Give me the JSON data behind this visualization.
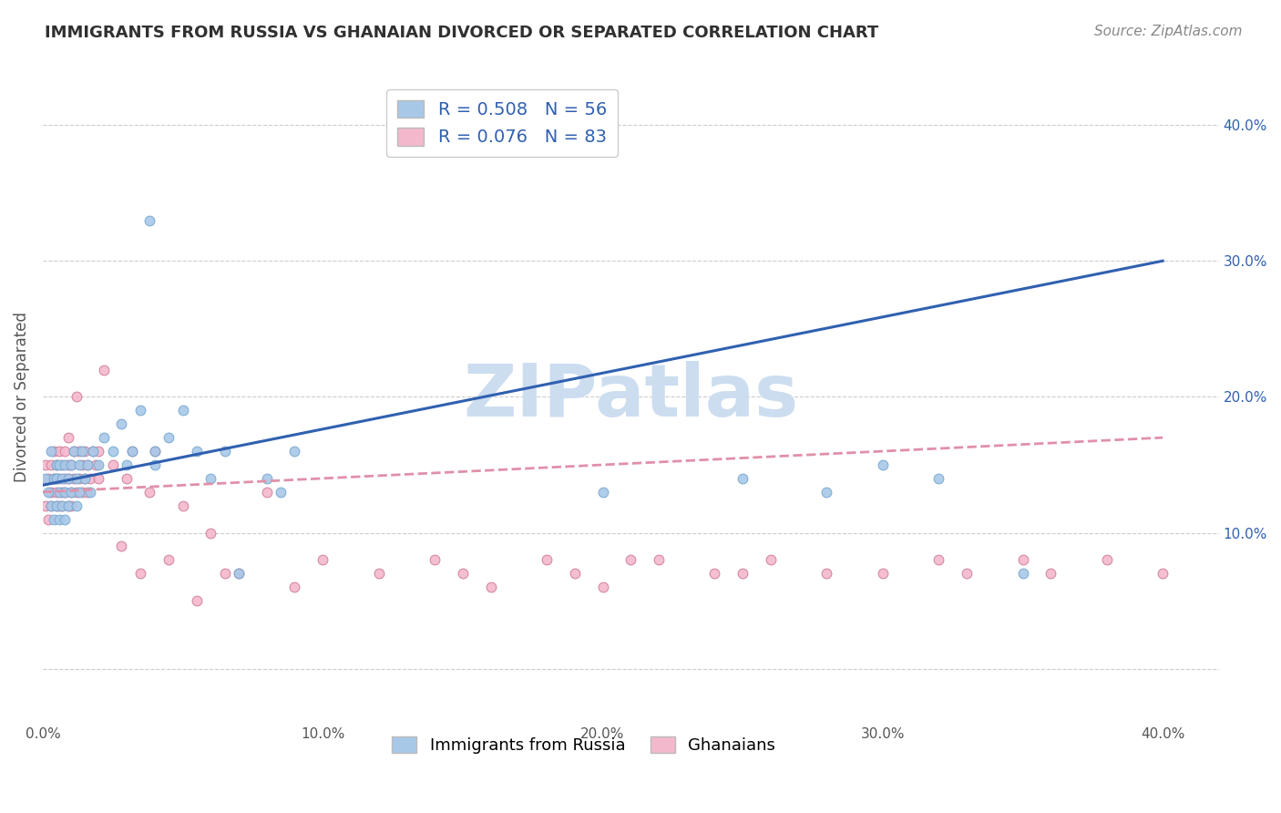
{
  "title": "IMMIGRANTS FROM RUSSIA VS GHANAIAN DIVORCED OR SEPARATED CORRELATION CHART",
  "source": "Source: ZipAtlas.com",
  "ylabel": "Divorced or Separated",
  "xlim": [
    0.0,
    0.42
  ],
  "ylim": [
    -0.04,
    0.44
  ],
  "xticks": [
    0.0,
    0.1,
    0.2,
    0.3,
    0.4
  ],
  "xticklabels": [
    "0.0%",
    "10.0%",
    "20.0%",
    "30.0%",
    "40.0%"
  ],
  "ytick_positions": [
    0.1,
    0.2,
    0.3,
    0.4
  ],
  "ytick_labels": [
    "10.0%",
    "20.0%",
    "30.0%",
    "40.0%"
  ],
  "series1_label": "Immigrants from Russia",
  "series2_label": "Ghanaians",
  "series1_color": "#a8c8e8",
  "series2_color": "#f4b8cc",
  "series1_edge": "#7aaad0",
  "series2_edge": "#d080a0",
  "trend1_color": "#3060b0",
  "trend2_color": "#e090a8",
  "trend1_start_y": 0.135,
  "trend1_end_y": 0.3,
  "trend2_start_y": 0.13,
  "trend2_end_y": 0.17,
  "watermark": "ZIPatlas",
  "watermark_color": "#ccddf0",
  "background_color": "#ffffff",
  "grid_color": "#cccccc",
  "title_color": "#303030",
  "legend1_text": "R = 0.508   N = 56",
  "legend2_text": "R = 0.076   N = 83",
  "legend_text_color": "#3060b0",
  "series1_x": [
    0.001,
    0.002,
    0.003,
    0.003,
    0.004,
    0.004,
    0.005,
    0.005,
    0.005,
    0.006,
    0.006,
    0.006,
    0.007,
    0.007,
    0.008,
    0.008,
    0.008,
    0.009,
    0.009,
    0.01,
    0.01,
    0.011,
    0.012,
    0.012,
    0.013,
    0.013,
    0.014,
    0.015,
    0.016,
    0.017,
    0.018,
    0.02,
    0.022,
    0.025,
    0.028,
    0.03,
    0.032,
    0.035,
    0.038,
    0.04,
    0.04,
    0.045,
    0.05,
    0.055,
    0.06,
    0.065,
    0.07,
    0.08,
    0.085,
    0.09,
    0.2,
    0.25,
    0.28,
    0.3,
    0.32,
    0.35
  ],
  "series1_y": [
    0.14,
    0.13,
    0.16,
    0.12,
    0.14,
    0.11,
    0.15,
    0.12,
    0.14,
    0.13,
    0.15,
    0.11,
    0.14,
    0.12,
    0.15,
    0.13,
    0.11,
    0.14,
    0.12,
    0.15,
    0.13,
    0.16,
    0.14,
    0.12,
    0.15,
    0.13,
    0.16,
    0.14,
    0.15,
    0.13,
    0.16,
    0.15,
    0.17,
    0.16,
    0.18,
    0.15,
    0.16,
    0.19,
    0.33,
    0.15,
    0.16,
    0.17,
    0.19,
    0.16,
    0.14,
    0.16,
    0.07,
    0.14,
    0.13,
    0.16,
    0.13,
    0.14,
    0.13,
    0.15,
    0.14,
    0.07
  ],
  "series2_x": [
    0.001,
    0.001,
    0.002,
    0.002,
    0.003,
    0.003,
    0.003,
    0.004,
    0.004,
    0.005,
    0.005,
    0.005,
    0.005,
    0.006,
    0.006,
    0.006,
    0.007,
    0.007,
    0.007,
    0.008,
    0.008,
    0.008,
    0.009,
    0.009,
    0.009,
    0.009,
    0.01,
    0.01,
    0.01,
    0.011,
    0.011,
    0.012,
    0.012,
    0.013,
    0.013,
    0.014,
    0.014,
    0.015,
    0.015,
    0.016,
    0.016,
    0.017,
    0.018,
    0.019,
    0.02,
    0.02,
    0.022,
    0.025,
    0.028,
    0.03,
    0.032,
    0.035,
    0.038,
    0.04,
    0.045,
    0.05,
    0.055,
    0.06,
    0.065,
    0.07,
    0.08,
    0.09,
    0.1,
    0.12,
    0.14,
    0.15,
    0.16,
    0.18,
    0.19,
    0.2,
    0.21,
    0.22,
    0.24,
    0.25,
    0.26,
    0.28,
    0.3,
    0.32,
    0.33,
    0.35,
    0.36,
    0.38,
    0.4
  ],
  "series2_y": [
    0.12,
    0.15,
    0.11,
    0.14,
    0.13,
    0.15,
    0.12,
    0.14,
    0.16,
    0.12,
    0.14,
    0.15,
    0.13,
    0.12,
    0.14,
    0.16,
    0.13,
    0.15,
    0.12,
    0.14,
    0.16,
    0.13,
    0.12,
    0.14,
    0.15,
    0.17,
    0.13,
    0.15,
    0.12,
    0.14,
    0.16,
    0.13,
    0.2,
    0.14,
    0.16,
    0.15,
    0.13,
    0.14,
    0.16,
    0.15,
    0.13,
    0.14,
    0.16,
    0.15,
    0.16,
    0.14,
    0.22,
    0.15,
    0.09,
    0.14,
    0.16,
    0.07,
    0.13,
    0.16,
    0.08,
    0.12,
    0.05,
    0.1,
    0.07,
    0.07,
    0.13,
    0.06,
    0.08,
    0.07,
    0.08,
    0.07,
    0.06,
    0.08,
    0.07,
    0.06,
    0.08,
    0.08,
    0.07,
    0.07,
    0.08,
    0.07,
    0.07,
    0.08,
    0.07,
    0.08,
    0.07,
    0.08,
    0.07
  ]
}
